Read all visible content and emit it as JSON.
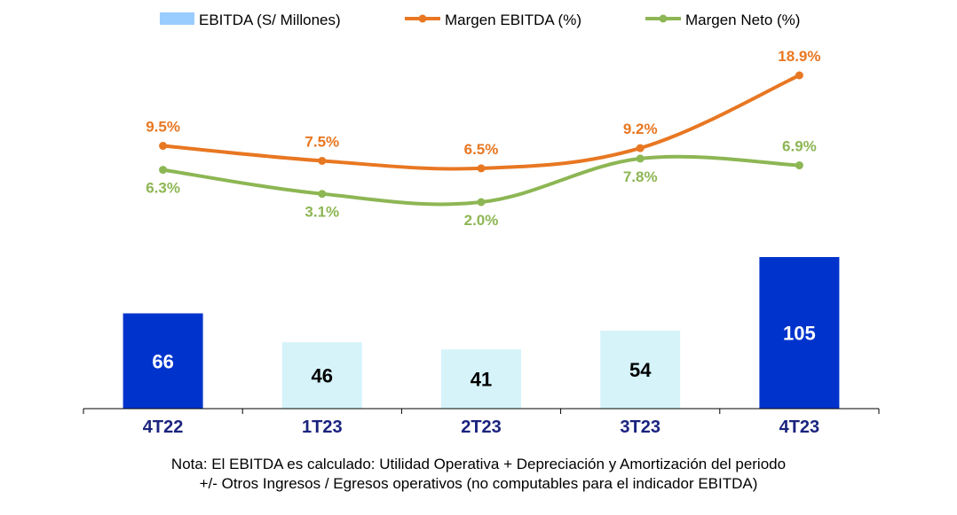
{
  "chart_data": {
    "type": "bar",
    "categories": [
      "4T22",
      "1T23",
      "2T23",
      "3T23",
      "4T23"
    ],
    "series": [
      {
        "name": "EBITDA (S/ Millones)",
        "kind": "bar",
        "values": [
          66,
          46,
          41,
          54,
          105
        ],
        "labels": [
          "66",
          "46",
          "41",
          "54",
          "105"
        ],
        "colors": [
          "#0033cc",
          "#d6f3fa",
          "#d6f3fa",
          "#d6f3fa",
          "#0033cc"
        ],
        "label_colors": [
          "#ffffff",
          "#000000",
          "#000000",
          "#000000",
          "#ffffff"
        ]
      },
      {
        "name": "Margen EBITDA (%)",
        "kind": "line",
        "values": [
          9.5,
          7.5,
          6.5,
          9.2,
          18.9
        ],
        "labels": [
          "9.5%",
          "7.5%",
          "6.5%",
          "9.2%",
          "18.9%"
        ],
        "color": "#e87722"
      },
      {
        "name": "Margen Neto (%)",
        "kind": "line",
        "values": [
          6.3,
          3.1,
          2.0,
          7.8,
          6.9
        ],
        "labels": [
          "6.3%",
          "3.1%",
          "2.0%",
          "7.8%",
          "6.9%"
        ],
        "color": "#8db654"
      }
    ],
    "legend_position": "top",
    "legend_colors": [
      "#99ccff",
      "#e87722",
      "#8db654"
    ],
    "category_label_color": "#1a237e",
    "grid": false
  },
  "note": {
    "line1": "Nota: El EBITDA es calculado: Utilidad Operativa + Depreciación y Amortización del periodo",
    "line2": "+/- Otros Ingresos / Egresos operativos (no computables para el indicador EBITDA)"
  }
}
